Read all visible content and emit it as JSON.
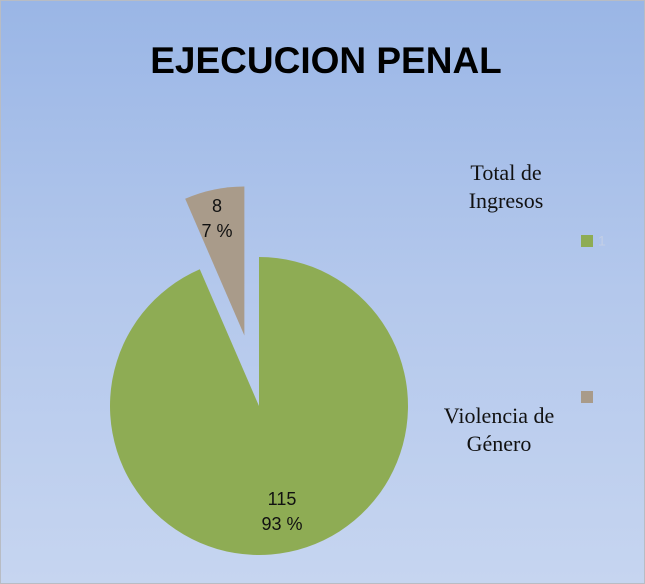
{
  "chart_data": {
    "type": "pie",
    "title": "EJECUCION PENAL",
    "categories": [
      "Total de Ingresos",
      "Violencia de Género"
    ],
    "values": [
      115,
      8
    ],
    "percentages": [
      93,
      7
    ],
    "percentage_labels": [
      "93 %",
      "7 %"
    ],
    "colors": [
      "#8eac54",
      "#a99b8a"
    ],
    "legend_marker_labels": [
      "1",
      null
    ],
    "legend": "right"
  }
}
